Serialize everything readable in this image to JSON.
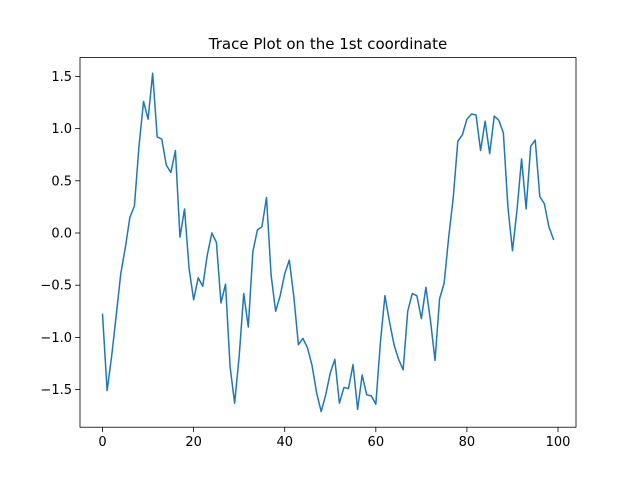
{
  "chart_data": {
    "type": "line",
    "title": "Trace Plot on the 1st coordinate",
    "xlabel": "",
    "ylabel": "",
    "xlim": [
      -4.95,
      103.95
    ],
    "ylim": [
      -1.86,
      1.68
    ],
    "xticks": [
      0,
      20,
      40,
      60,
      80,
      100
    ],
    "yticks": [
      -1.5,
      -1.0,
      -0.5,
      0.0,
      0.5,
      1.0,
      1.5
    ],
    "ytick_labels": [
      "−1.5",
      "−1.0",
      "−0.5",
      "0.0",
      "0.5",
      "1.0",
      "1.5"
    ],
    "grid": false,
    "line_color": "#1f77b4",
    "series": [
      {
        "values": [
          -0.78,
          -1.51,
          -1.18,
          -0.79,
          -0.39,
          -0.14,
          0.15,
          0.26,
          0.83,
          1.26,
          1.09,
          1.53,
          0.92,
          0.9,
          0.65,
          0.58,
          0.79,
          -0.04,
          0.23,
          -0.34,
          -0.64,
          -0.43,
          -0.51,
          -0.21,
          0.0,
          -0.09,
          -0.67,
          -0.49,
          -1.28,
          -1.63,
          -1.18,
          -0.58,
          -0.9,
          -0.18,
          0.03,
          0.06,
          0.34,
          -0.4,
          -0.75,
          -0.6,
          -0.39,
          -0.26,
          -0.61,
          -1.07,
          -1.01,
          -1.1,
          -1.27,
          -1.53,
          -1.71,
          -1.55,
          -1.34,
          -1.21,
          -1.63,
          -1.48,
          -1.49,
          -1.26,
          -1.69,
          -1.36,
          -1.55,
          -1.56,
          -1.64,
          -1.05,
          -0.6,
          -0.85,
          -1.07,
          -1.21,
          -1.31,
          -0.75,
          -0.58,
          -0.6,
          -0.82,
          -0.52,
          -0.84,
          -1.22,
          -0.63,
          -0.48,
          -0.04,
          0.34,
          0.88,
          0.94,
          1.09,
          1.14,
          1.13,
          0.79,
          1.07,
          0.76,
          1.12,
          1.08,
          0.96,
          0.25,
          -0.17,
          0.22,
          0.71,
          0.23,
          0.83,
          0.89,
          0.35,
          0.28,
          0.06,
          -0.06
        ]
      }
    ]
  }
}
